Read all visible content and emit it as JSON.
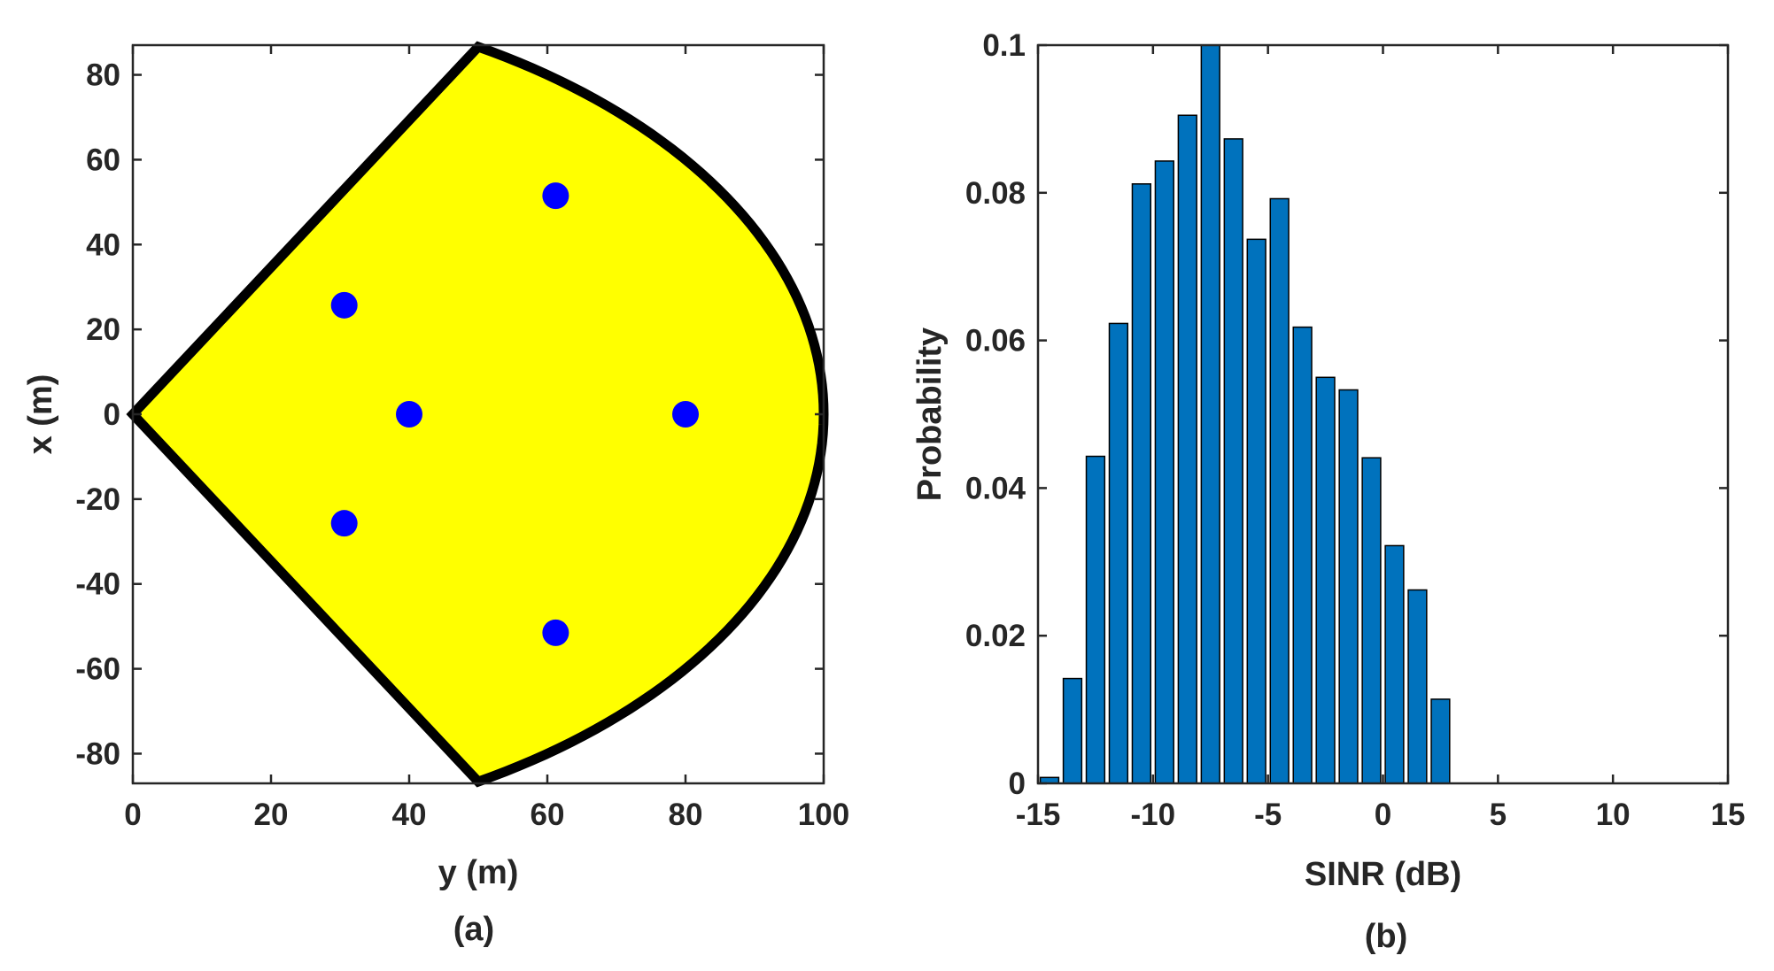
{
  "chart_data": [
    {
      "type": "scatter",
      "panel": "(a)",
      "xlabel": "y (m)",
      "ylabel": "x (m)",
      "xlim": [
        0,
        100
      ],
      "ylim": [
        -87,
        87
      ],
      "xticks": [
        0,
        20,
        40,
        60,
        80,
        100
      ],
      "yticks": [
        -80,
        -60,
        -40,
        -20,
        0,
        20,
        40,
        60,
        80
      ],
      "region": {
        "description": "sector of radius 100 m spanning +/-60 degrees",
        "fill": "#ffff00",
        "outline": "#000000",
        "radius": 100,
        "half_angle_deg": 60
      },
      "points": [
        {
          "x": 61.2,
          "y": 51.5
        },
        {
          "x": 30.6,
          "y": 25.7
        },
        {
          "x": 40,
          "y": 0
        },
        {
          "x": 80,
          "y": 0
        },
        {
          "x": 30.6,
          "y": -25.7
        },
        {
          "x": 61.2,
          "y": -51.5
        }
      ],
      "point_color": "#0000ff"
    },
    {
      "type": "bar",
      "panel": "(b)",
      "xlabel": "SINR (dB)",
      "ylabel": "Probability",
      "xlim": [
        -15,
        15
      ],
      "ylim": [
        0,
        0.1
      ],
      "xticks": [
        -15,
        -10,
        -5,
        0,
        5,
        10,
        15
      ],
      "yticks": [
        0,
        0.02,
        0.04,
        0.06,
        0.08,
        0.1
      ],
      "bin_width": 1,
      "bar_color": "#0072bd",
      "x": [
        -14.5,
        -13.5,
        -12.5,
        -11.5,
        -10.5,
        -9.5,
        -8.5,
        -7.5,
        -6.5,
        -5.5,
        -4.5,
        -3.5,
        -2.5,
        -1.5,
        -0.5,
        0.5,
        1.5,
        2.5
      ],
      "values": [
        0.0008,
        0.0142,
        0.0443,
        0.0623,
        0.0812,
        0.0843,
        0.0905,
        0.1,
        0.0873,
        0.0737,
        0.0792,
        0.0618,
        0.055,
        0.0533,
        0.0441,
        0.0322,
        0.0262,
        0.0114
      ]
    }
  ],
  "captions": {
    "a": "(a)",
    "b": "(b)"
  }
}
